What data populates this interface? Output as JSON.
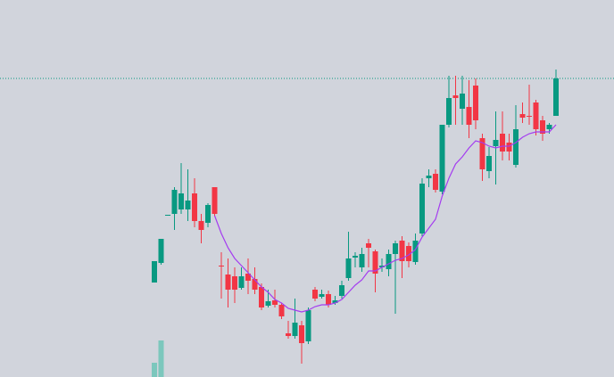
{
  "chart_data": {
    "type": "candlestick",
    "ylim": [
      0,
      423
    ],
    "up_color": "#089981",
    "down_color": "#f23645",
    "open": [
      106,
      128,
      182,
      183,
      188,
      188,
      206,
      175,
      173,
      213,
      125,
      115,
      113,
      100,
      116,
      110,
      101,
      80,
      86,
      81,
      49,
      46,
      58,
      40,
      98,
      90,
      93,
      83,
      91,
      111,
      134,
      123,
      150,
      141,
      123,
      121,
      138,
      153,
      147,
      129,
      161,
      223,
      228,
      208,
      283,
      316,
      301,
      303,
      327,
      268,
      231,
      259,
      273,
      263,
      238,
      295,
      293,
      308,
      288,
      278,
      293
    ],
    "high": [
      130,
      155,
      182,
      213,
      240,
      233,
      223,
      183,
      195,
      213,
      140,
      133,
      123,
      123,
      133,
      123,
      105,
      98,
      98,
      83,
      63,
      88,
      63,
      78,
      101,
      98,
      97,
      91,
      108,
      163,
      140,
      145,
      155,
      143,
      133,
      143,
      153,
      158,
      151,
      161,
      223,
      233,
      233,
      283,
      338,
      338,
      338,
      333,
      335,
      273,
      258,
      298,
      298,
      273,
      305,
      308,
      328,
      311,
      293,
      285,
      345
    ],
    "low": [
      106,
      126,
      182,
      165,
      183,
      175,
      168,
      150,
      168,
      180,
      88,
      78,
      83,
      98,
      93,
      93,
      75,
      78,
      78,
      65,
      43,
      43,
      15,
      37,
      85,
      88,
      78,
      81,
      88,
      108,
      123,
      118,
      123,
      95,
      118,
      113,
      71,
      111,
      123,
      126,
      158,
      213,
      207,
      205,
      280,
      283,
      283,
      268,
      278,
      220,
      223,
      216,
      243,
      243,
      235,
      285,
      283,
      271,
      265,
      273,
      293
    ],
    "close": [
      130,
      155,
      182,
      210,
      206,
      198,
      175,
      165,
      193,
      183,
      124,
      98,
      98,
      113,
      108,
      98,
      78,
      85,
      81,
      68,
      46,
      61,
      38,
      75,
      88,
      93,
      81,
      86,
      103,
      133,
      136,
      138,
      145,
      116,
      125,
      138,
      150,
      130,
      130,
      153,
      217,
      226,
      210,
      283,
      313,
      313,
      318,
      283,
      288,
      233,
      248,
      266,
      253,
      253,
      278,
      291,
      292,
      278,
      273,
      283,
      335
    ],
    "ma": {
      "color": "#a43cf0",
      "values": [
        null,
        null,
        null,
        null,
        null,
        null,
        null,
        null,
        null,
        181,
        161,
        145,
        133,
        125,
        117,
        109,
        101,
        95,
        87,
        83,
        77,
        75,
        73,
        75,
        79,
        81,
        81,
        83,
        87,
        95,
        103,
        109,
        119,
        119,
        123,
        127,
        131,
        133,
        137,
        143,
        157,
        167,
        177,
        203,
        223,
        239,
        247,
        257,
        265,
        263,
        259,
        257,
        259,
        259,
        263,
        269,
        273,
        275,
        275,
        275,
        283
      ]
    },
    "volume": {
      "color": "#7cc7bd",
      "values": [
        16,
        41,
        null,
        null,
        null,
        null,
        null,
        null,
        null,
        null,
        null,
        null,
        null,
        null,
        null,
        null,
        null,
        null,
        null,
        null,
        null,
        null,
        null,
        null,
        null,
        null,
        null,
        null,
        null,
        null,
        null,
        null,
        null,
        null,
        null,
        null,
        null,
        null,
        null,
        null,
        null,
        null,
        null,
        null,
        null,
        null,
        null,
        null,
        null,
        null,
        null,
        null,
        null,
        null,
        null,
        null,
        null,
        null,
        null,
        null,
        null
      ]
    },
    "last_price_line_color": "#089981"
  }
}
